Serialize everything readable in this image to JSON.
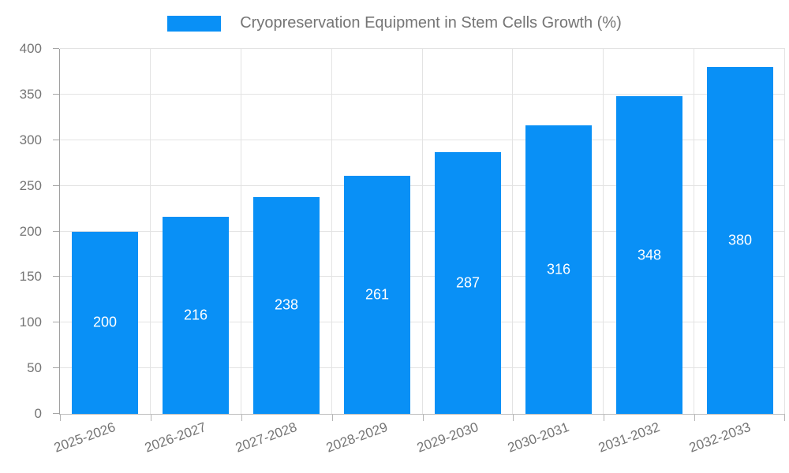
{
  "legend": {
    "label": "Cryopreservation Equipment in Stem Cells Growth (%)"
  },
  "chart_data": {
    "type": "bar",
    "title": "Cryopreservation Equipment in Stem Cells Growth (%)",
    "categories": [
      "2025-2026",
      "2026-2027",
      "2027-2028",
      "2028-2029",
      "2029-2030",
      "2030-2031",
      "2031-2032",
      "2032-2033"
    ],
    "values": [
      200,
      216,
      238,
      261,
      287,
      316,
      348,
      380
    ],
    "xlabel": "",
    "ylabel": "",
    "ylim": [
      0,
      400
    ],
    "ytick_step": 50,
    "yticks": [
      0,
      50,
      100,
      150,
      200,
      250,
      300,
      350,
      400
    ],
    "grid": true,
    "legend_position": "top-center",
    "bar_color": "#0990f6",
    "bar_label_color": "#ffffff",
    "axis_text_color": "#757575"
  }
}
